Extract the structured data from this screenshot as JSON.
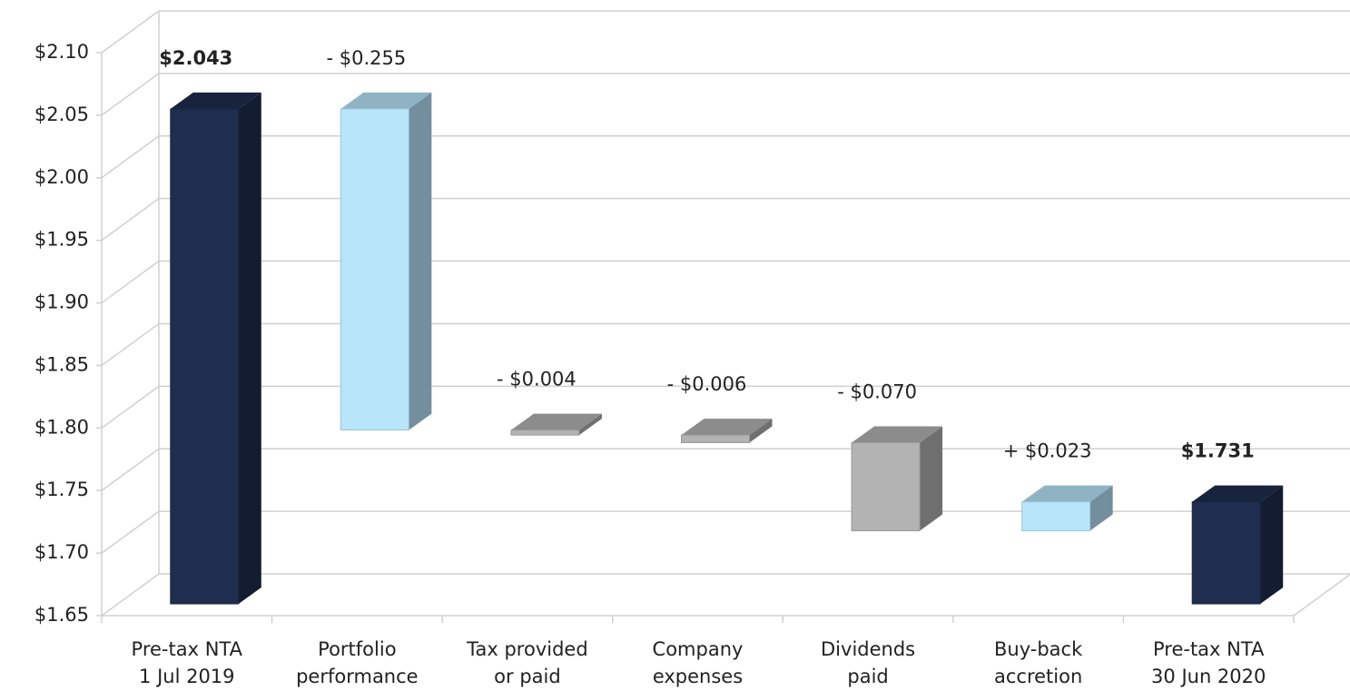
{
  "chart_data": {
    "type": "waterfall",
    "categories": [
      [
        "Pre-tax NTA",
        "1 Jul 2019"
      ],
      [
        "Portfolio",
        "performance"
      ],
      [
        "Tax provided",
        "or paid"
      ],
      [
        "Company",
        "expenses"
      ],
      [
        "Dividends",
        "paid"
      ],
      [
        "Buy-back",
        "accretion"
      ],
      [
        "Pre-tax NTA",
        "30 Jun 2020"
      ]
    ],
    "values": [
      2.043,
      -0.255,
      -0.004,
      -0.006,
      -0.07,
      0.023,
      1.731
    ],
    "value_labels": [
      "$2.043",
      "- $0.255",
      "- $0.004",
      "- $0.006",
      "- $0.070",
      "+ $0.023",
      "$1.731"
    ],
    "kinds": [
      "total",
      "change",
      "change",
      "change",
      "change",
      "change",
      "total"
    ],
    "colors": [
      "#1f2d4e",
      "#b9e5fb",
      "#b3b3b3",
      "#b3b3b3",
      "#b3b3b3",
      "#b9e5fb",
      "#1f2d4e"
    ],
    "ylim": [
      1.65,
      2.1
    ],
    "yticks": [
      {
        "value": 1.65,
        "label": "$1.65"
      },
      {
        "value": 1.7,
        "label": "$1.70"
      },
      {
        "value": 1.75,
        "label": "$1.75"
      },
      {
        "value": 1.8,
        "label": "$1.80"
      },
      {
        "value": 1.85,
        "label": "$1.85"
      },
      {
        "value": 1.9,
        "label": "$1.90"
      },
      {
        "value": 1.95,
        "label": "$1.95"
      },
      {
        "value": 2.0,
        "label": "$2.00"
      },
      {
        "value": 2.05,
        "label": "$2.05"
      },
      {
        "value": 2.1,
        "label": "$2.10"
      }
    ],
    "grid": true
  }
}
